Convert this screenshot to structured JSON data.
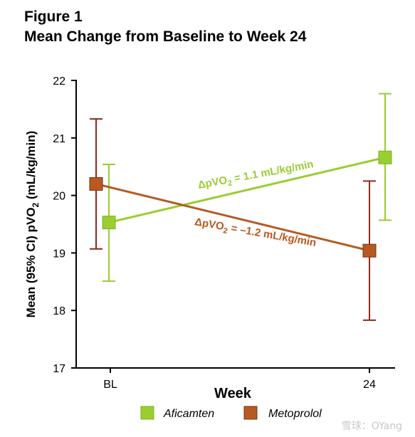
{
  "title_line1": "Figure 1",
  "title_line2": "Mean Change from Baseline to Week 24",
  "watermark": "雪球：OYang",
  "chart_data": {
    "type": "line",
    "x_categories": [
      "BL",
      "24"
    ],
    "xlabel": "Week",
    "ylabel_prefix": "Mean (95% CI) pVO",
    "ylabel_sub": "2",
    "ylabel_suffix": " (mL/kg/min)",
    "ylim": [
      17,
      22
    ],
    "yticks": [
      "17",
      "18",
      "19",
      "20",
      "21",
      "22"
    ],
    "grid": false,
    "legend_position": "bottom",
    "series": [
      {
        "name": "Aficamten",
        "color": "#9acd32",
        "values": [
          19.53,
          20.66
        ],
        "ci_low": [
          18.51,
          19.57
        ],
        "ci_high": [
          20.54,
          21.77
        ],
        "annotation": {
          "prefix": "ΔpVO",
          "sub": "2",
          "suffix": " = 1.1 mL/kg/min"
        }
      },
      {
        "name": "Metoprolol",
        "color": "#b65a22",
        "error_color": "#8b2a1c",
        "values": [
          20.2,
          19.04
        ],
        "ci_low": [
          19.07,
          17.83
        ],
        "ci_high": [
          21.33,
          20.25
        ],
        "annotation": {
          "prefix": "ΔpVO",
          "sub": "2",
          "suffix": " = –1.2 mL/kg/min"
        }
      }
    ]
  }
}
